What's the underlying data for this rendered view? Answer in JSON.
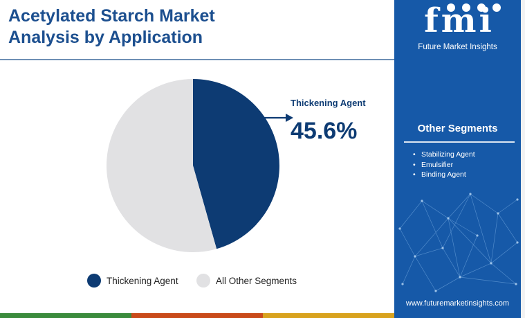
{
  "header": {
    "title_line1": "Acetylated Starch Market",
    "title_line2": "Analysis by Application"
  },
  "brand": {
    "logo_text": "fmi",
    "name": "Future Market Insights",
    "website": "www.futuremarketinsights.com"
  },
  "other_segments": {
    "heading": "Other Segments",
    "items": [
      "Stabilizing Agent",
      "Emulsifier",
      "Binding Agent"
    ]
  },
  "callout": {
    "label": "Thickening Agent",
    "value": "45.6%"
  },
  "colors": {
    "title": "#1c4f8f",
    "panel": "#1659a8",
    "primary_slice": "#0d3b73",
    "other_slice": "#e1e1e3",
    "bottom_bar": [
      "#3b8b3c",
      "#c94a1a",
      "#d8a21e",
      "#1659a8"
    ]
  },
  "chart_data": {
    "type": "pie",
    "title": "Acetylated Starch Market Analysis by Application",
    "slices": [
      {
        "label": "Thickening Agent",
        "value": 45.6,
        "color": "#0d3b73"
      },
      {
        "label": "All Other Segments",
        "value": 54.4,
        "color": "#e1e1e3"
      }
    ],
    "legend": "bottom",
    "start_angle": "top, clockwise"
  }
}
